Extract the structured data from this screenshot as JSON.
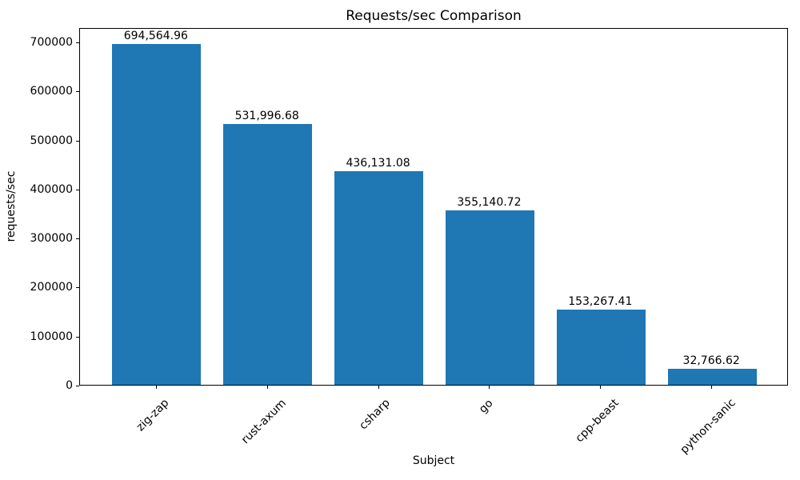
{
  "chart_data": {
    "type": "bar",
    "title": "Requests/sec Comparison",
    "xlabel": "Subject",
    "ylabel": "requests/sec",
    "categories": [
      "zig-zap",
      "rust-axum",
      "csharp",
      "go",
      "cpp-beast",
      "python-sanic"
    ],
    "values": [
      694564.96,
      531996.68,
      436131.08,
      355140.72,
      153267.41,
      32766.62
    ],
    "bar_value_labels": [
      "694,564.96",
      "531,996.68",
      "436,131.08",
      "355,140.72",
      "153,267.41",
      "32,766.62"
    ],
    "yticks": [
      0,
      100000,
      200000,
      300000,
      400000,
      500000,
      600000,
      700000
    ],
    "ytick_labels": [
      "0",
      "100000",
      "200000",
      "300000",
      "400000",
      "500000",
      "600000",
      "700000"
    ],
    "ylim": [
      0,
      729293
    ],
    "x_tick_rotation_deg": 45,
    "grid": false,
    "legend": null,
    "bar_color": "#1f77b4",
    "axis_color": "#000000",
    "background_color": "#ffffff"
  }
}
